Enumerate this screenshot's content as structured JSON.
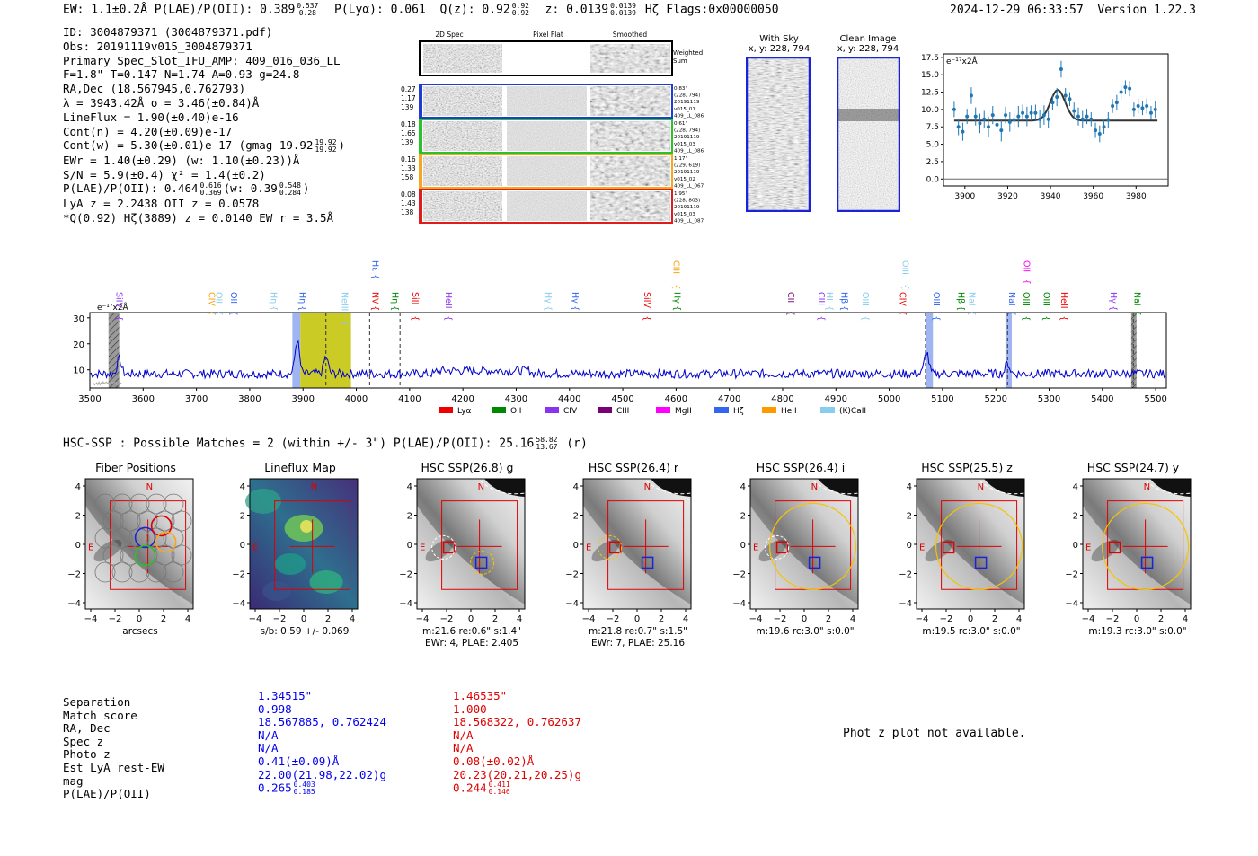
{
  "header": {
    "left": "EW: 1.1±0.2Å  P(LAE)/P(OII): 0.389",
    "left_sup": "0.537",
    "left_sub": "0.28",
    "ply": "P(Lyα): 0.061",
    "q": "Q(z): 0.92",
    "q_sup": "0.92",
    "q_sub": "0.92",
    "z": "z: 0.0139",
    "z_sup": "0.0139",
    "z_sub": "0.0139",
    "z_tail": "Hζ   Flags:0x00000050",
    "datetime": "2024-12-29 06:33:57",
    "version": "Version 1.22.3"
  },
  "info": {
    "l1": "ID: 3004879371 (3004879371.pdf)",
    "l2": "Obs: 20191119v015_3004879371",
    "l3": "Primary Spec_Slot_IFU_AMP: 409_016_036_LL",
    "l4": "F=1.8\"  T=0.147  N=1.74  A=0.93  g=24.8",
    "l5": "RA,Dec (18.567945,0.762793)",
    "l6": "λ = 3943.42Å  σ = 3.46(±0.84)Å",
    "l7": "LineFlux = 1.90(±0.40)e-16",
    "l8": "Cont(n) = 4.20(±0.09)e-17",
    "l9": "Cont(w) = 5.30(±0.01)e-17 (gmag 19.92",
    "l9_sup": "19.92",
    "l9_sub": "19.92",
    "l10": "EWr = 1.40(±0.29) (w: 1.10(±0.23))Å",
    "l11": "S/N = 5.9(±0.4)  χ² = 1.4(±0.2)",
    "l12": "P(LAE)/P(OII): 0.464",
    "l12_sup": "0.616",
    "l12_sub": "0.369",
    "l12_b": "(w: 0.39",
    "l12_bsup": "0.548",
    "l12_bsub": "0.284",
    "l13": "LyA z = 2.2438  OII z = 0.0578",
    "l14": "*Q(0.92) Hζ(3889) z = 0.0140  EW r = 3.5Å"
  },
  "specgrid": {
    "col_titles": [
      "2D Spec",
      "Pixel Flat",
      "Smoothed"
    ],
    "weighted_label": "Weighted Sum",
    "rows": [
      {
        "left": [
          "0.27",
          "1.17",
          "139"
        ],
        "right": [
          "0.83\"",
          "(228, 794)",
          "20191119",
          "v015_01",
          "409_LL_086"
        ],
        "color": "#1f3bd6"
      },
      {
        "left": [
          "0.18",
          "1.65",
          "139"
        ],
        "right": [
          "0.61\"",
          "(228, 794)",
          "20191119",
          "v015_03",
          "409_LL_086"
        ],
        "color": "#2bc12b"
      },
      {
        "left": [
          "0.16",
          "1.33",
          "158"
        ],
        "right": [
          "1.17\"",
          "(229, 619)",
          "20191119",
          "v015_02",
          "409_LL_067"
        ],
        "color": "#f5a623"
      },
      {
        "left": [
          "0.08",
          "1.43",
          "138"
        ],
        "right": [
          "1.95\"",
          "(228, 803)",
          "20191119",
          "v015_03",
          "409_LL_087"
        ],
        "color": "#e01b1b"
      }
    ]
  },
  "cutouts": {
    "with_sky": "With Sky",
    "with_sky_xy": "x, y: 228, 794",
    "clean": "Clean Image",
    "clean_xy": "x, y: 228, 794"
  },
  "chart_data": [
    {
      "type": "scatter",
      "name": "line-fit",
      "yunit": "e⁻¹⁷x2Å",
      "xlim": [
        3890,
        3995
      ],
      "ylim": [
        -1,
        18
      ],
      "xticks": [
        3900,
        3920,
        3940,
        3960,
        3980
      ],
      "yticks": [
        0.0,
        2.5,
        5.0,
        7.5,
        10.0,
        12.5,
        15.0,
        17.5
      ],
      "x": [
        3895,
        3897,
        3899,
        3901,
        3903,
        3905,
        3907,
        3909,
        3911,
        3913,
        3915,
        3917,
        3919,
        3921,
        3923,
        3925,
        3927,
        3929,
        3931,
        3933,
        3935,
        3937,
        3939,
        3941,
        3943,
        3945,
        3947,
        3949,
        3951,
        3953,
        3955,
        3957,
        3959,
        3961,
        3963,
        3965,
        3967,
        3969,
        3971,
        3973,
        3975,
        3977,
        3979,
        3981,
        3983,
        3985,
        3987,
        3989
      ],
      "y": [
        10.0,
        7.5,
        6.8,
        9.0,
        12.0,
        9.0,
        8.0,
        8.6,
        7.5,
        9.2,
        7.8,
        7.0,
        9.2,
        8.2,
        8.5,
        9.0,
        9.5,
        9.0,
        9.5,
        9.5,
        8.6,
        9.2,
        8.6,
        11.0,
        11.8,
        15.8,
        12.0,
        11.5,
        9.8,
        9.0,
        8.6,
        9.0,
        8.6,
        7.0,
        6.5,
        7.5,
        8.5,
        10.5,
        11.0,
        12.5,
        13.2,
        13.0,
        10.0,
        10.5,
        10.2,
        10.5,
        9.5,
        10.0
      ],
      "err": [
        1.1,
        1.2,
        1.3,
        1.1,
        1.2,
        1.3,
        1.4,
        1.2,
        1.5,
        1.3,
        1.4,
        1.6,
        1.2,
        1.4,
        1.3,
        1.5,
        1.2,
        1.4,
        1.1,
        1.2,
        1.3,
        1.4,
        1.2,
        1.1,
        1.3,
        1.2,
        1.1,
        1.0,
        1.2,
        1.3,
        1.2,
        1.1,
        1.0,
        1.1,
        1.2,
        1.0,
        1.1,
        1.0,
        1.1,
        1.0,
        1.0,
        1.1,
        1.0,
        1.1,
        1.0,
        1.1,
        1.0,
        1.2
      ],
      "fit": {
        "continuum": 8.4,
        "peak": 12.8,
        "center": 3943.42,
        "sigma": 3.46
      }
    },
    {
      "type": "line",
      "name": "full-spectrum",
      "yunit": "e⁻¹⁷x2Å",
      "xlim": [
        3500,
        5520
      ],
      "ylim": [
        3,
        32
      ],
      "xticks": [
        3500,
        3600,
        3700,
        3800,
        3900,
        4000,
        4100,
        4200,
        4300,
        4400,
        4500,
        4600,
        4700,
        4800,
        4900,
        5000,
        5100,
        5200,
        5300,
        5400,
        5500
      ],
      "yticks": [
        10,
        20,
        30
      ],
      "legend": [
        {
          "label": "Lyα",
          "color": "#ee0000"
        },
        {
          "label": "OII",
          "color": "#008800"
        },
        {
          "label": "CIV",
          "color": "#8833ee"
        },
        {
          "label": "CIII",
          "color": "#770077"
        },
        {
          "label": "MgII",
          "color": "#ff00ff"
        },
        {
          "label": "Hζ",
          "color": "#3366ee"
        },
        {
          "label": "HeII",
          "color": "#ff9900"
        },
        {
          "label": "(K)CaII",
          "color": "#88ccee"
        }
      ],
      "line_labels": [
        {
          "label": "SiIV",
          "x": 3545,
          "color": "#8833ee",
          "high": false
        },
        {
          "label": "CIV",
          "x": 3718,
          "color": "#ff9900",
          "high": false
        },
        {
          "label": "OII",
          "x": 3732,
          "color": "#88ccee",
          "high": false
        },
        {
          "label": "OII",
          "x": 3760,
          "color": "#3366ee",
          "high": false
        },
        {
          "label": "Hη",
          "x": 3835,
          "color": "#88ccee",
          "high": false
        },
        {
          "label": "Hη",
          "x": 3889,
          "color": "#3366ee",
          "high": false
        },
        {
          "label": "Hε",
          "x": 4025,
          "color": "#3366ee",
          "high": true
        },
        {
          "label": "NeIII",
          "x": 3968,
          "color": "#88ccee",
          "high": false
        },
        {
          "label": "NV",
          "x": 4025,
          "color": "#ee0000",
          "high": false
        },
        {
          "label": "Hη",
          "x": 4062,
          "color": "#008800",
          "high": false
        },
        {
          "label": "SiII",
          "x": 4100,
          "color": "#ee0000",
          "high": false
        },
        {
          "label": "HeII",
          "x": 4163,
          "color": "#8833ee",
          "high": false
        },
        {
          "label": "Hγ",
          "x": 4350,
          "color": "#88ccee",
          "high": false
        },
        {
          "label": "Hγ",
          "x": 4400,
          "color": "#3366ee",
          "high": false
        },
        {
          "label": "SiIV",
          "x": 4535,
          "color": "#ee0000",
          "high": false
        },
        {
          "label": "CIII",
          "x": 4590,
          "color": "#ff9900",
          "high": true
        },
        {
          "label": "Hγ",
          "x": 4592,
          "color": "#008800",
          "high": false
        },
        {
          "label": "CII",
          "x": 4805,
          "color": "#770077",
          "high": false
        },
        {
          "label": "CIII",
          "x": 4862,
          "color": "#8833ee",
          "high": false
        },
        {
          "label": "HI",
          "x": 4878,
          "color": "#88ccee",
          "high": false
        },
        {
          "label": "Hβ",
          "x": 4905,
          "color": "#3366ee",
          "high": false
        },
        {
          "label": "OIII",
          "x": 4945,
          "color": "#88ccee",
          "high": false
        },
        {
          "label": "CIV",
          "x": 5015,
          "color": "#ee0000",
          "high": false
        },
        {
          "label": "OIII",
          "x": 5020,
          "color": "#88ccee",
          "high": true
        },
        {
          "label": "OIII",
          "x": 5078,
          "color": "#3366ee",
          "high": false
        },
        {
          "label": "Hβ",
          "x": 5125,
          "color": "#008800",
          "high": false
        },
        {
          "label": "NaI",
          "x": 5145,
          "color": "#88ccee",
          "high": false
        },
        {
          "label": "OII",
          "x": 5248,
          "color": "#ff00ff",
          "high": true
        },
        {
          "label": "NaI",
          "x": 5220,
          "color": "#3366ee",
          "high": false
        },
        {
          "label": "OIII",
          "x": 5247,
          "color": "#008800",
          "high": false
        },
        {
          "label": "OIII",
          "x": 5285,
          "color": "#008800",
          "high": false
        },
        {
          "label": "HeII",
          "x": 5318,
          "color": "#ee0000",
          "high": false
        },
        {
          "label": "Hγ",
          "x": 5410,
          "color": "#8833ee",
          "high": false
        },
        {
          "label": "NaI",
          "x": 5455,
          "color": "#008800",
          "high": false
        }
      ],
      "shaded": [
        {
          "x0": 3535,
          "x1": 3555,
          "color": "#9a9a9a",
          "hatch": true
        },
        {
          "x0": 3880,
          "x1": 3895,
          "color": "#8fa7ee",
          "hatch": false
        },
        {
          "x0": 3895,
          "x1": 3990,
          "color": "#c2c200",
          "hatch": false
        },
        {
          "x0": 5068,
          "x1": 5082,
          "color": "#8fa7ee",
          "hatch": false
        },
        {
          "x0": 5218,
          "x1": 5230,
          "color": "#8fa7ee",
          "hatch": false
        },
        {
          "x0": 5454,
          "x1": 5464,
          "color": "#9a9a9a",
          "hatch": true
        }
      ],
      "dashed": [
        3943,
        4025,
        4082,
        5068,
        5222,
        5458
      ],
      "peaks": [
        {
          "x": 3555,
          "y": 14
        },
        {
          "x": 3889,
          "y": 21.5
        },
        {
          "x": 3943,
          "y": 15
        },
        {
          "x": 5070,
          "y": 17
        },
        {
          "x": 5222,
          "y": 12.5
        }
      ],
      "baseline": 8.5
    }
  ],
  "hsc": {
    "headline": "HSC-SSP : Possible Matches = 2 (within +/- 3\")  P(LAE)/P(OII): 25.16",
    "headline_sup": "58.82",
    "headline_sub": "13.67",
    "headline_tail": "(r)",
    "panels": [
      {
        "title": "Fiber Positions",
        "cap1": "arcsecs",
        "cap2": ""
      },
      {
        "title": "Lineflux Map",
        "cap1": "s/b: 0.59 +/- 0.069",
        "cap2": ""
      },
      {
        "title": "HSC SSP(26.8) g",
        "cap1": "m:21.6  re:0.6\"  s:1.4\"",
        "cap2": "EWr: 4, PLAE: 2.405"
      },
      {
        "title": "HSC SSP(26.4) r",
        "cap1": "m:21.8  re:0.7\"  s:1.5\"",
        "cap2": "EWr: 7, PLAE: 25.16"
      },
      {
        "title": "HSC SSP(26.4) i",
        "cap1": "m:19.6 rc:3.0\"  s:0.0\"",
        "cap2": ""
      },
      {
        "title": "HSC SSP(25.5) z",
        "cap1": "m:19.5 rc:3.0\"  s:0.0\"",
        "cap2": ""
      },
      {
        "title": "HSC SSP(24.7) y",
        "cap1": "m:19.3 rc:3.0\"  s:0.0\"",
        "cap2": ""
      }
    ],
    "axis_ticks": [
      "−4",
      "−2",
      "0",
      "2",
      "4"
    ],
    "north": "N",
    "east": "E"
  },
  "comparison": {
    "labels": [
      "Separation",
      "Match score",
      "RA, Dec",
      "Spec z",
      "Photo z",
      "Est LyA rest-EW",
      "mag",
      "P(LAE)/P(OII)"
    ],
    "blue": [
      "1.34515\"",
      "0.998",
      "18.567885, 0.762424",
      "N/A",
      "N/A",
      "0.41(±0.09)Å",
      "22.00(21.98,22.02)g",
      "0.265"
    ],
    "blue_plae_sup": "0.403",
    "blue_plae_sub": "0.185",
    "red": [
      "1.46535\"",
      "1.000",
      "18.568322, 0.762637",
      "N/A",
      "N/A",
      "0.08(±0.02)Å",
      "20.23(20.21,20.25)g",
      "0.244"
    ],
    "red_plae_sup": "0.411",
    "red_plae_sub": "0.146",
    "photz_note": "Phot z plot not available."
  },
  "colors": {
    "blue": "#0000ee",
    "red": "#e00000",
    "spec": "#0000cc",
    "fit": "#333333",
    "points": "#1f77b4"
  }
}
